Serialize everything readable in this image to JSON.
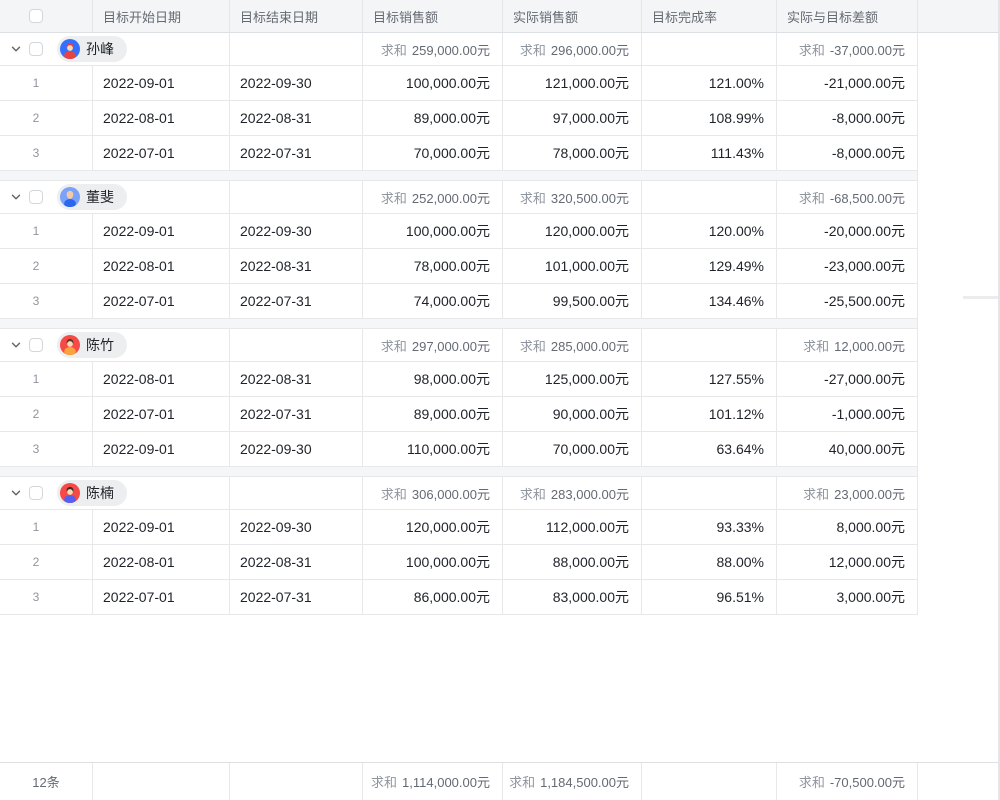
{
  "sum_label": "求和",
  "columns": [
    "目标开始日期",
    "目标结束日期",
    "目标销售额",
    "实际销售额",
    "目标完成率",
    "实际与目标差额"
  ],
  "footer": {
    "count": "12条",
    "target": "1,114,000.00元",
    "actual": "1,184,500.00元",
    "diff": "-70,500.00元"
  },
  "groups": [
    {
      "name": "孙峰",
      "avatar": {
        "bg": "#3370ff",
        "hair": "#e0413c",
        "skin": "#f8d8b8",
        "shirt": "#e8443f"
      },
      "sum_target": "259,000.00元",
      "sum_actual": "296,000.00元",
      "sum_diff": "-37,000.00元",
      "rows": [
        {
          "idx": "1",
          "start": "2022-09-01",
          "end": "2022-09-30",
          "target": "100,000.00元",
          "actual": "121,000.00元",
          "rate": "121.00%",
          "diff": "-21,000.00元"
        },
        {
          "idx": "2",
          "start": "2022-08-01",
          "end": "2022-08-31",
          "target": "89,000.00元",
          "actual": "97,000.00元",
          "rate": "108.99%",
          "diff": "-8,000.00元"
        },
        {
          "idx": "3",
          "start": "2022-07-01",
          "end": "2022-07-31",
          "target": "70,000.00元",
          "actual": "78,000.00元",
          "rate": "111.43%",
          "diff": "-8,000.00元"
        }
      ]
    },
    {
      "name": "董斐",
      "avatar": {
        "bg": "#7ba2f8",
        "hair": "#f3caa6",
        "skin": "#f3caa6",
        "shirt": "#2a66f0"
      },
      "sum_target": "252,000.00元",
      "sum_actual": "320,500.00元",
      "sum_diff": "-68,500.00元",
      "rows": [
        {
          "idx": "1",
          "start": "2022-09-01",
          "end": "2022-09-30",
          "target": "100,000.00元",
          "actual": "120,000.00元",
          "rate": "120.00%",
          "diff": "-20,000.00元"
        },
        {
          "idx": "2",
          "start": "2022-08-01",
          "end": "2022-08-31",
          "target": "78,000.00元",
          "actual": "101,000.00元",
          "rate": "129.49%",
          "diff": "-23,000.00元"
        },
        {
          "idx": "3",
          "start": "2022-07-01",
          "end": "2022-07-31",
          "target": "74,000.00元",
          "actual": "99,500.00元",
          "rate": "134.46%",
          "diff": "-25,500.00元"
        }
      ]
    },
    {
      "name": "陈竹",
      "avatar": {
        "bg": "#f54a45",
        "hair": "#573a2c",
        "skin": "#f8d8b8",
        "shirt": "#f8a33c"
      },
      "sum_target": "297,000.00元",
      "sum_actual": "285,000.00元",
      "sum_diff": "12,000.00元",
      "rows": [
        {
          "idx": "1",
          "start": "2022-08-01",
          "end": "2022-08-31",
          "target": "98,000.00元",
          "actual": "125,000.00元",
          "rate": "127.55%",
          "diff": "-27,000.00元"
        },
        {
          "idx": "2",
          "start": "2022-07-01",
          "end": "2022-07-31",
          "target": "89,000.00元",
          "actual": "90,000.00元",
          "rate": "101.12%",
          "diff": "-1,000.00元"
        },
        {
          "idx": "3",
          "start": "2022-09-01",
          "end": "2022-09-30",
          "target": "110,000.00元",
          "actual": "70,000.00元",
          "rate": "63.64%",
          "diff": "40,000.00元"
        }
      ]
    },
    {
      "name": "陈楠",
      "avatar": {
        "bg": "#f54a45",
        "hair": "#3c2b21",
        "skin": "#f8d8b8",
        "shirt": "#5560f0"
      },
      "sum_target": "306,000.00元",
      "sum_actual": "283,000.00元",
      "sum_diff": "23,000.00元",
      "rows": [
        {
          "idx": "1",
          "start": "2022-09-01",
          "end": "2022-09-30",
          "target": "120,000.00元",
          "actual": "112,000.00元",
          "rate": "93.33%",
          "diff": "8,000.00元"
        },
        {
          "idx": "2",
          "start": "2022-08-01",
          "end": "2022-08-31",
          "target": "100,000.00元",
          "actual": "88,000.00元",
          "rate": "88.00%",
          "diff": "12,000.00元"
        },
        {
          "idx": "3",
          "start": "2022-07-01",
          "end": "2022-07-31",
          "target": "86,000.00元",
          "actual": "83,000.00元",
          "rate": "96.51%",
          "diff": "3,000.00元"
        }
      ]
    }
  ]
}
